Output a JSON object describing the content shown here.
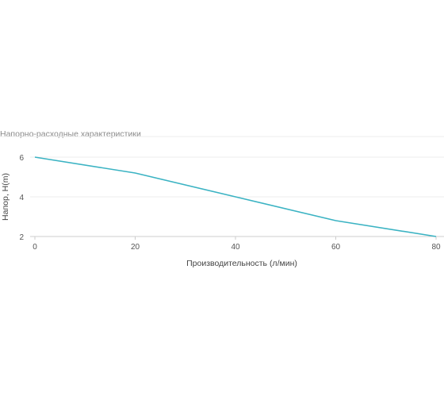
{
  "chart_data": {
    "type": "line",
    "title": "Напорно-расходные характеристики",
    "xlabel": "Производительность (л/мин)",
    "ylabel": "Напор, H(m)",
    "x_ticks": [
      0,
      20,
      40,
      60,
      80
    ],
    "y_ticks": [
      2,
      4,
      6
    ],
    "xlim": [
      0,
      80
    ],
    "ylim": [
      2,
      6
    ],
    "grid": "horizontal",
    "series": [
      {
        "x": [
          0,
          20,
          40,
          60,
          80
        ],
        "y": [
          6,
          5.2,
          4.0,
          2.8,
          2.0
        ]
      }
    ],
    "colors": {
      "line": "#3bb3c3",
      "grid": "#ececec",
      "axis": "#cccccc"
    }
  }
}
